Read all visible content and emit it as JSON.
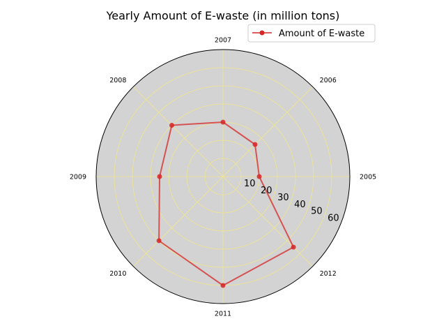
{
  "chart_data": {
    "type": "radar",
    "title": "Yearly Amount of E-waste (in million tons)",
    "categories": [
      "2005",
      "2006",
      "2007",
      "2008",
      "2009",
      "2010",
      "2011",
      "2012"
    ],
    "series": [
      {
        "name": "Amount of E-waste",
        "values": [
          20,
          25,
          30,
          40,
          35,
          50,
          60,
          55
        ]
      }
    ],
    "r_ticks": [
      10,
      20,
      30,
      40,
      50,
      60
    ],
    "r_max": 70,
    "grid": true,
    "legend": "top-right",
    "colors": {
      "series": "#d62728",
      "background": "#d3d3d3",
      "grid": "#f0e68c",
      "outline": "#000000"
    }
  }
}
